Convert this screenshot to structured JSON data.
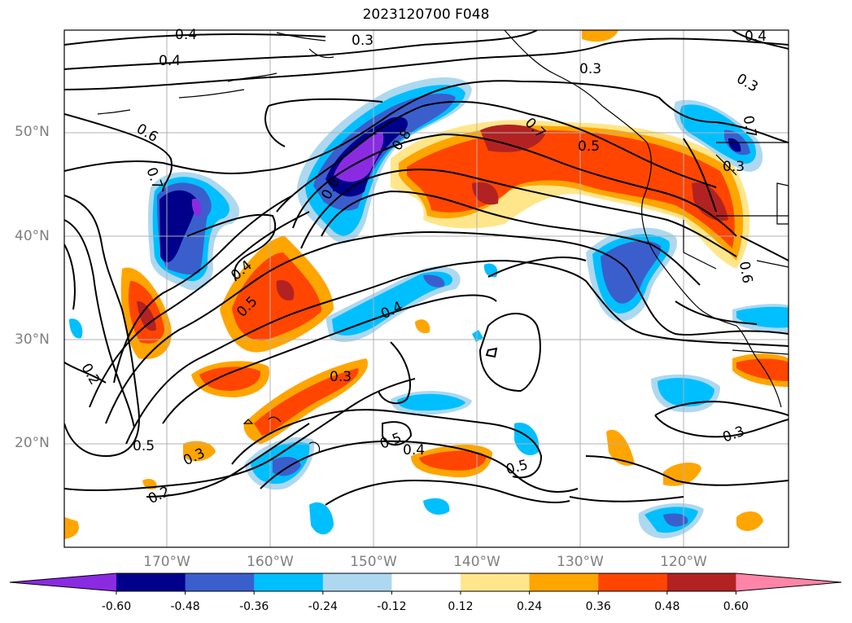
{
  "title": "2023120700 F048",
  "lat_labels": [
    "50°N",
    "40°N",
    "30°N",
    "20°N"
  ],
  "lon_labels": [
    "170°W",
    "160°W",
    "150°W",
    "140°W",
    "130°W",
    "120°W"
  ],
  "contour_labels": [
    "0.4",
    "0.3",
    "0.4",
    "0.4",
    "0.3",
    "0.3",
    "0.6",
    "0.7",
    "0.6",
    "0.8",
    "0.7",
    "0.5",
    "0.3",
    "0.5",
    "0.4",
    "0.4",
    "0.3",
    "0.2",
    "0.5",
    "0.3",
    "0.2",
    "0.5",
    "0.4",
    "0.5",
    "0.3",
    "0.6",
    "0.7"
  ],
  "colorbar": {
    "ticks": [
      "-0.60",
      "-0.48",
      "-0.36",
      "-0.24",
      "-0.12",
      "0.12",
      "0.24",
      "0.36",
      "0.48",
      "0.60"
    ],
    "colors": [
      "#8a2be2",
      "#00008b",
      "#3a5fcd",
      "#00bfff",
      "#add8f0",
      "#ffffff",
      "#ffe68a",
      "#ffa500",
      "#ff4500",
      "#b22222",
      "#ff85a8"
    ]
  }
}
